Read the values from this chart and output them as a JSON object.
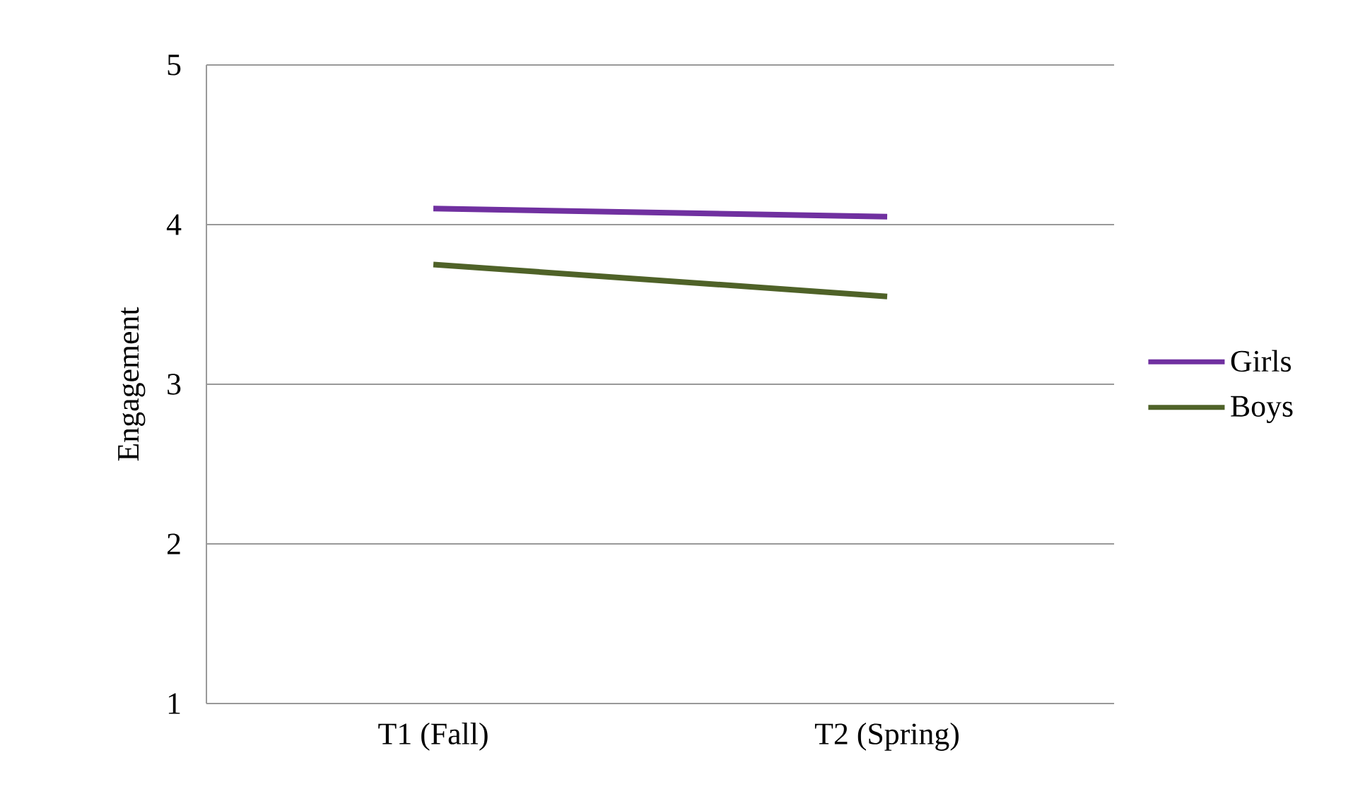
{
  "chart_data": {
    "type": "line",
    "ylabel": "Engagement",
    "categories": [
      "T1 (Fall)",
      "T2 (Spring)"
    ],
    "series": [
      {
        "name": "Girls",
        "color": "#7030a0",
        "values": [
          4.1,
          4.05
        ]
      },
      {
        "name": "Boys",
        "color": "#4f6228",
        "values": [
          3.75,
          3.55
        ]
      }
    ],
    "ylim": [
      1,
      5
    ],
    "yticks": [
      1,
      2,
      3,
      4,
      5
    ],
    "grid": "y",
    "legend": "right",
    "marker": "none",
    "line_style": "solid"
  }
}
